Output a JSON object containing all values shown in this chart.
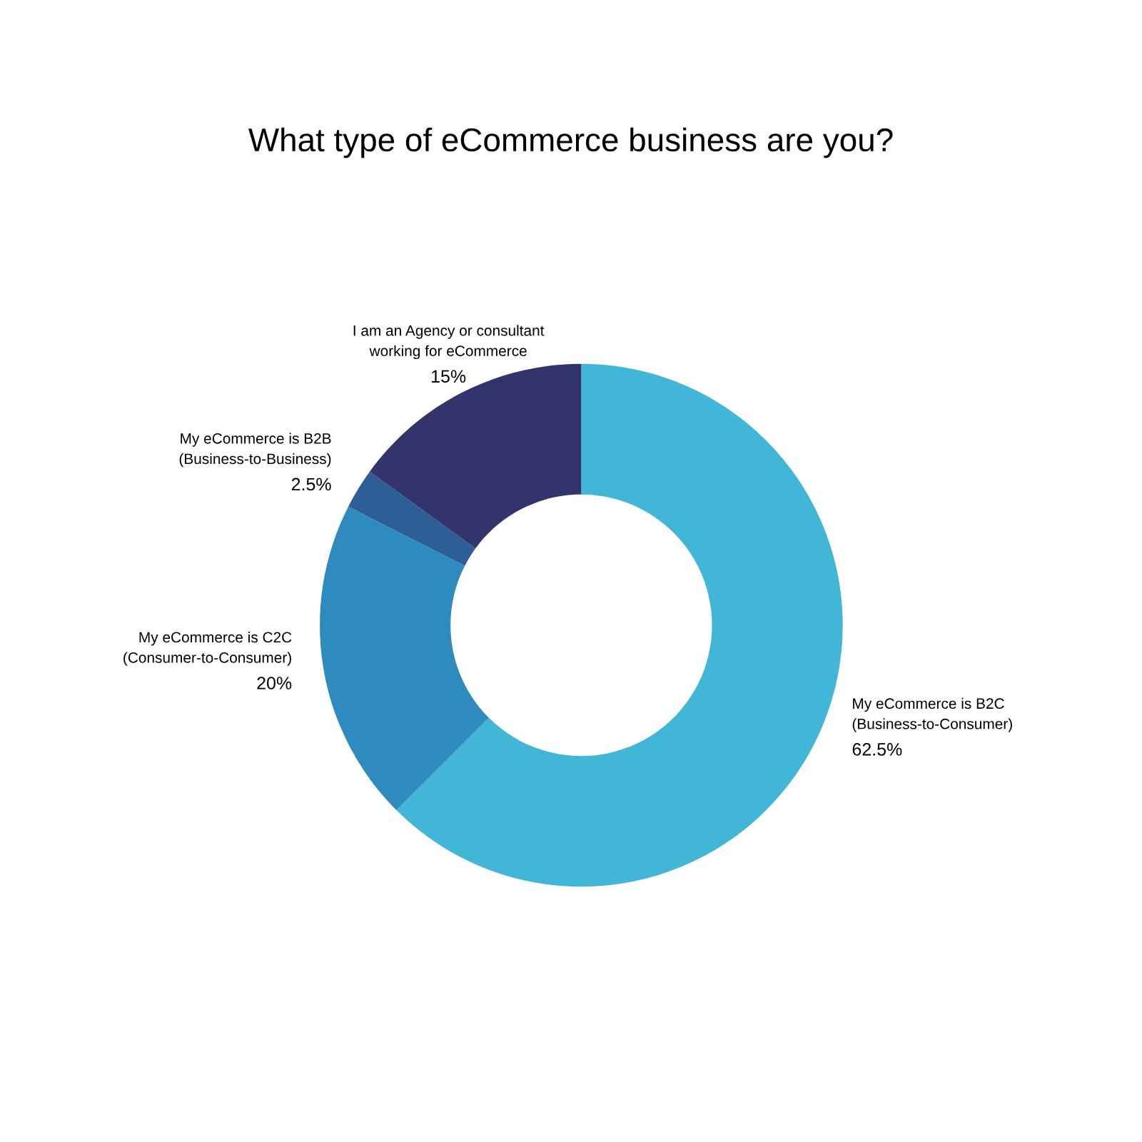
{
  "chart_data": {
    "type": "donut",
    "title": "What type of eCommerce business are you?",
    "categories": [
      "My eCommerce is B2C\n(Business-to-Consumer)",
      "My eCommerce is C2C\n(Consumer-to-Consumer)",
      "My eCommerce is B2B\n(Business-to-Business)",
      "I am an Agency or consultant\nworking for eCommerce"
    ],
    "values": [
      62.5,
      20,
      2.5,
      15
    ],
    "value_labels": [
      "62.5%",
      "20%",
      "2.5%",
      "15%"
    ],
    "colors": [
      "#42b6d6",
      "#2e8bbd",
      "#2e5e96",
      "#33346b"
    ],
    "legend": false
  }
}
